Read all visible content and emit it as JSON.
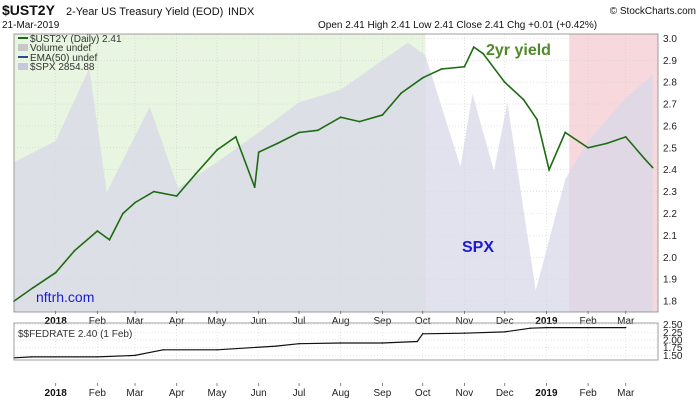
{
  "header": {
    "symbol": "$UST2Y",
    "name": "2-Year US Treasury Yield (EOD)",
    "exchange": "INDX",
    "date": "21-Mar-2019",
    "quote": "Open 2.41  High 2.41  Low 2.41  Close 2.41  Chg +0.01 (+0.42%)",
    "watermark": "© StockCharts.com"
  },
  "legend": {
    "items": [
      "$UST2Y (Daily) 2.41",
      "Volume undef",
      "EMA(50) undef",
      "$SPX 2854.88"
    ]
  },
  "annotations": {
    "yield_label": "2yr yield",
    "spx_label": "SPX",
    "site": "nftrh.com"
  },
  "colors": {
    "yield_line": "#1e6b12",
    "spx_fill": "#d8d8e8",
    "green_zone": "#e8f5e0",
    "red_zone": "#f7d8dc",
    "fedrate_line": "#111111",
    "annotation_green": "#4f8a2a",
    "annotation_blue": "#1a1ad6"
  },
  "chart_data": [
    {
      "type": "line",
      "title": "",
      "series": [
        {
          "name": "$UST2Y (Daily) 2.41",
          "x": [
            "2017-12-01",
            "2017-12-15",
            "2018-01-01",
            "2018-01-15",
            "2018-02-01",
            "2018-02-10",
            "2018-02-20",
            "2018-03-01",
            "2018-03-15",
            "2018-04-01",
            "2018-04-15",
            "2018-05-01",
            "2018-05-15",
            "2018-05-29",
            "2018-06-01",
            "2018-06-15",
            "2018-07-01",
            "2018-07-15",
            "2018-08-01",
            "2018-08-15",
            "2018-09-01",
            "2018-09-15",
            "2018-10-01",
            "2018-10-15",
            "2018-11-01",
            "2018-11-08",
            "2018-11-15",
            "2018-12-01",
            "2018-12-15",
            "2018-12-25",
            "2019-01-03",
            "2019-01-15",
            "2019-02-01",
            "2019-02-15",
            "2019-03-01",
            "2019-03-15",
            "2019-03-21"
          ],
          "values": [
            1.8,
            1.86,
            1.93,
            2.03,
            2.12,
            2.08,
            2.2,
            2.25,
            2.3,
            2.28,
            2.38,
            2.49,
            2.55,
            2.32,
            2.48,
            2.52,
            2.57,
            2.58,
            2.64,
            2.62,
            2.65,
            2.75,
            2.82,
            2.86,
            2.87,
            2.96,
            2.93,
            2.8,
            2.72,
            2.63,
            2.4,
            2.57,
            2.5,
            2.52,
            2.55,
            2.45,
            2.41
          ]
        },
        {
          "name": "$SPX 2854.88",
          "x": [
            "2017-12-01",
            "2018-01-01",
            "2018-01-26",
            "2018-02-08",
            "2018-03-12",
            "2018-04-02",
            "2018-05-01",
            "2018-06-01",
            "2018-07-01",
            "2018-08-01",
            "2018-09-20",
            "2018-10-03",
            "2018-10-29",
            "2018-11-07",
            "2018-11-23",
            "2018-12-03",
            "2018-12-24",
            "2019-01-15",
            "2019-02-01",
            "2019-03-01",
            "2019-03-21"
          ],
          "values": [
            2650,
            2700,
            2870,
            2580,
            2780,
            2590,
            2650,
            2720,
            2790,
            2820,
            2930,
            2900,
            2640,
            2810,
            2630,
            2790,
            2350,
            2610,
            2700,
            2800,
            2854.88
          ]
        }
      ],
      "x_ticks": [
        "2018",
        "Feb",
        "Mar",
        "Apr",
        "May",
        "Jun",
        "Jul",
        "Aug",
        "Sep",
        "Oct",
        "Nov",
        "Dec",
        "2019",
        "Feb",
        "Mar"
      ],
      "y_ticks": [
        "1.8",
        "1.9",
        "2.0",
        "2.1",
        "2.2",
        "2.3",
        "2.4",
        "2.5",
        "2.6",
        "2.7",
        "2.8",
        "2.9",
        "3.0"
      ],
      "ylim": [
        1.75,
        3.02
      ],
      "grid": true
    },
    {
      "type": "line",
      "title": "",
      "series": [
        {
          "name": "$$FEDRATE 2.40 (1 Feb)",
          "x": [
            "2017-12-01",
            "2017-12-14",
            "2018-02-01",
            "2018-03-01",
            "2018-03-22",
            "2018-05-01",
            "2018-06-14",
            "2018-07-01",
            "2018-08-01",
            "2018-09-01",
            "2018-09-27",
            "2018-10-01",
            "2018-11-01",
            "2018-12-01",
            "2018-12-20",
            "2019-01-01",
            "2019-02-01",
            "2019-03-01"
          ],
          "values": [
            1.42,
            1.45,
            1.45,
            1.5,
            1.68,
            1.68,
            1.8,
            1.88,
            1.9,
            1.9,
            1.95,
            2.2,
            2.22,
            2.26,
            2.38,
            2.4,
            2.4,
            2.4
          ]
        }
      ],
      "y_ticks": [
        "1.50",
        "1.75",
        "2.00",
        "2.25",
        "2.50"
      ],
      "ylim": [
        1.35,
        2.55
      ],
      "grid": true
    }
  ]
}
